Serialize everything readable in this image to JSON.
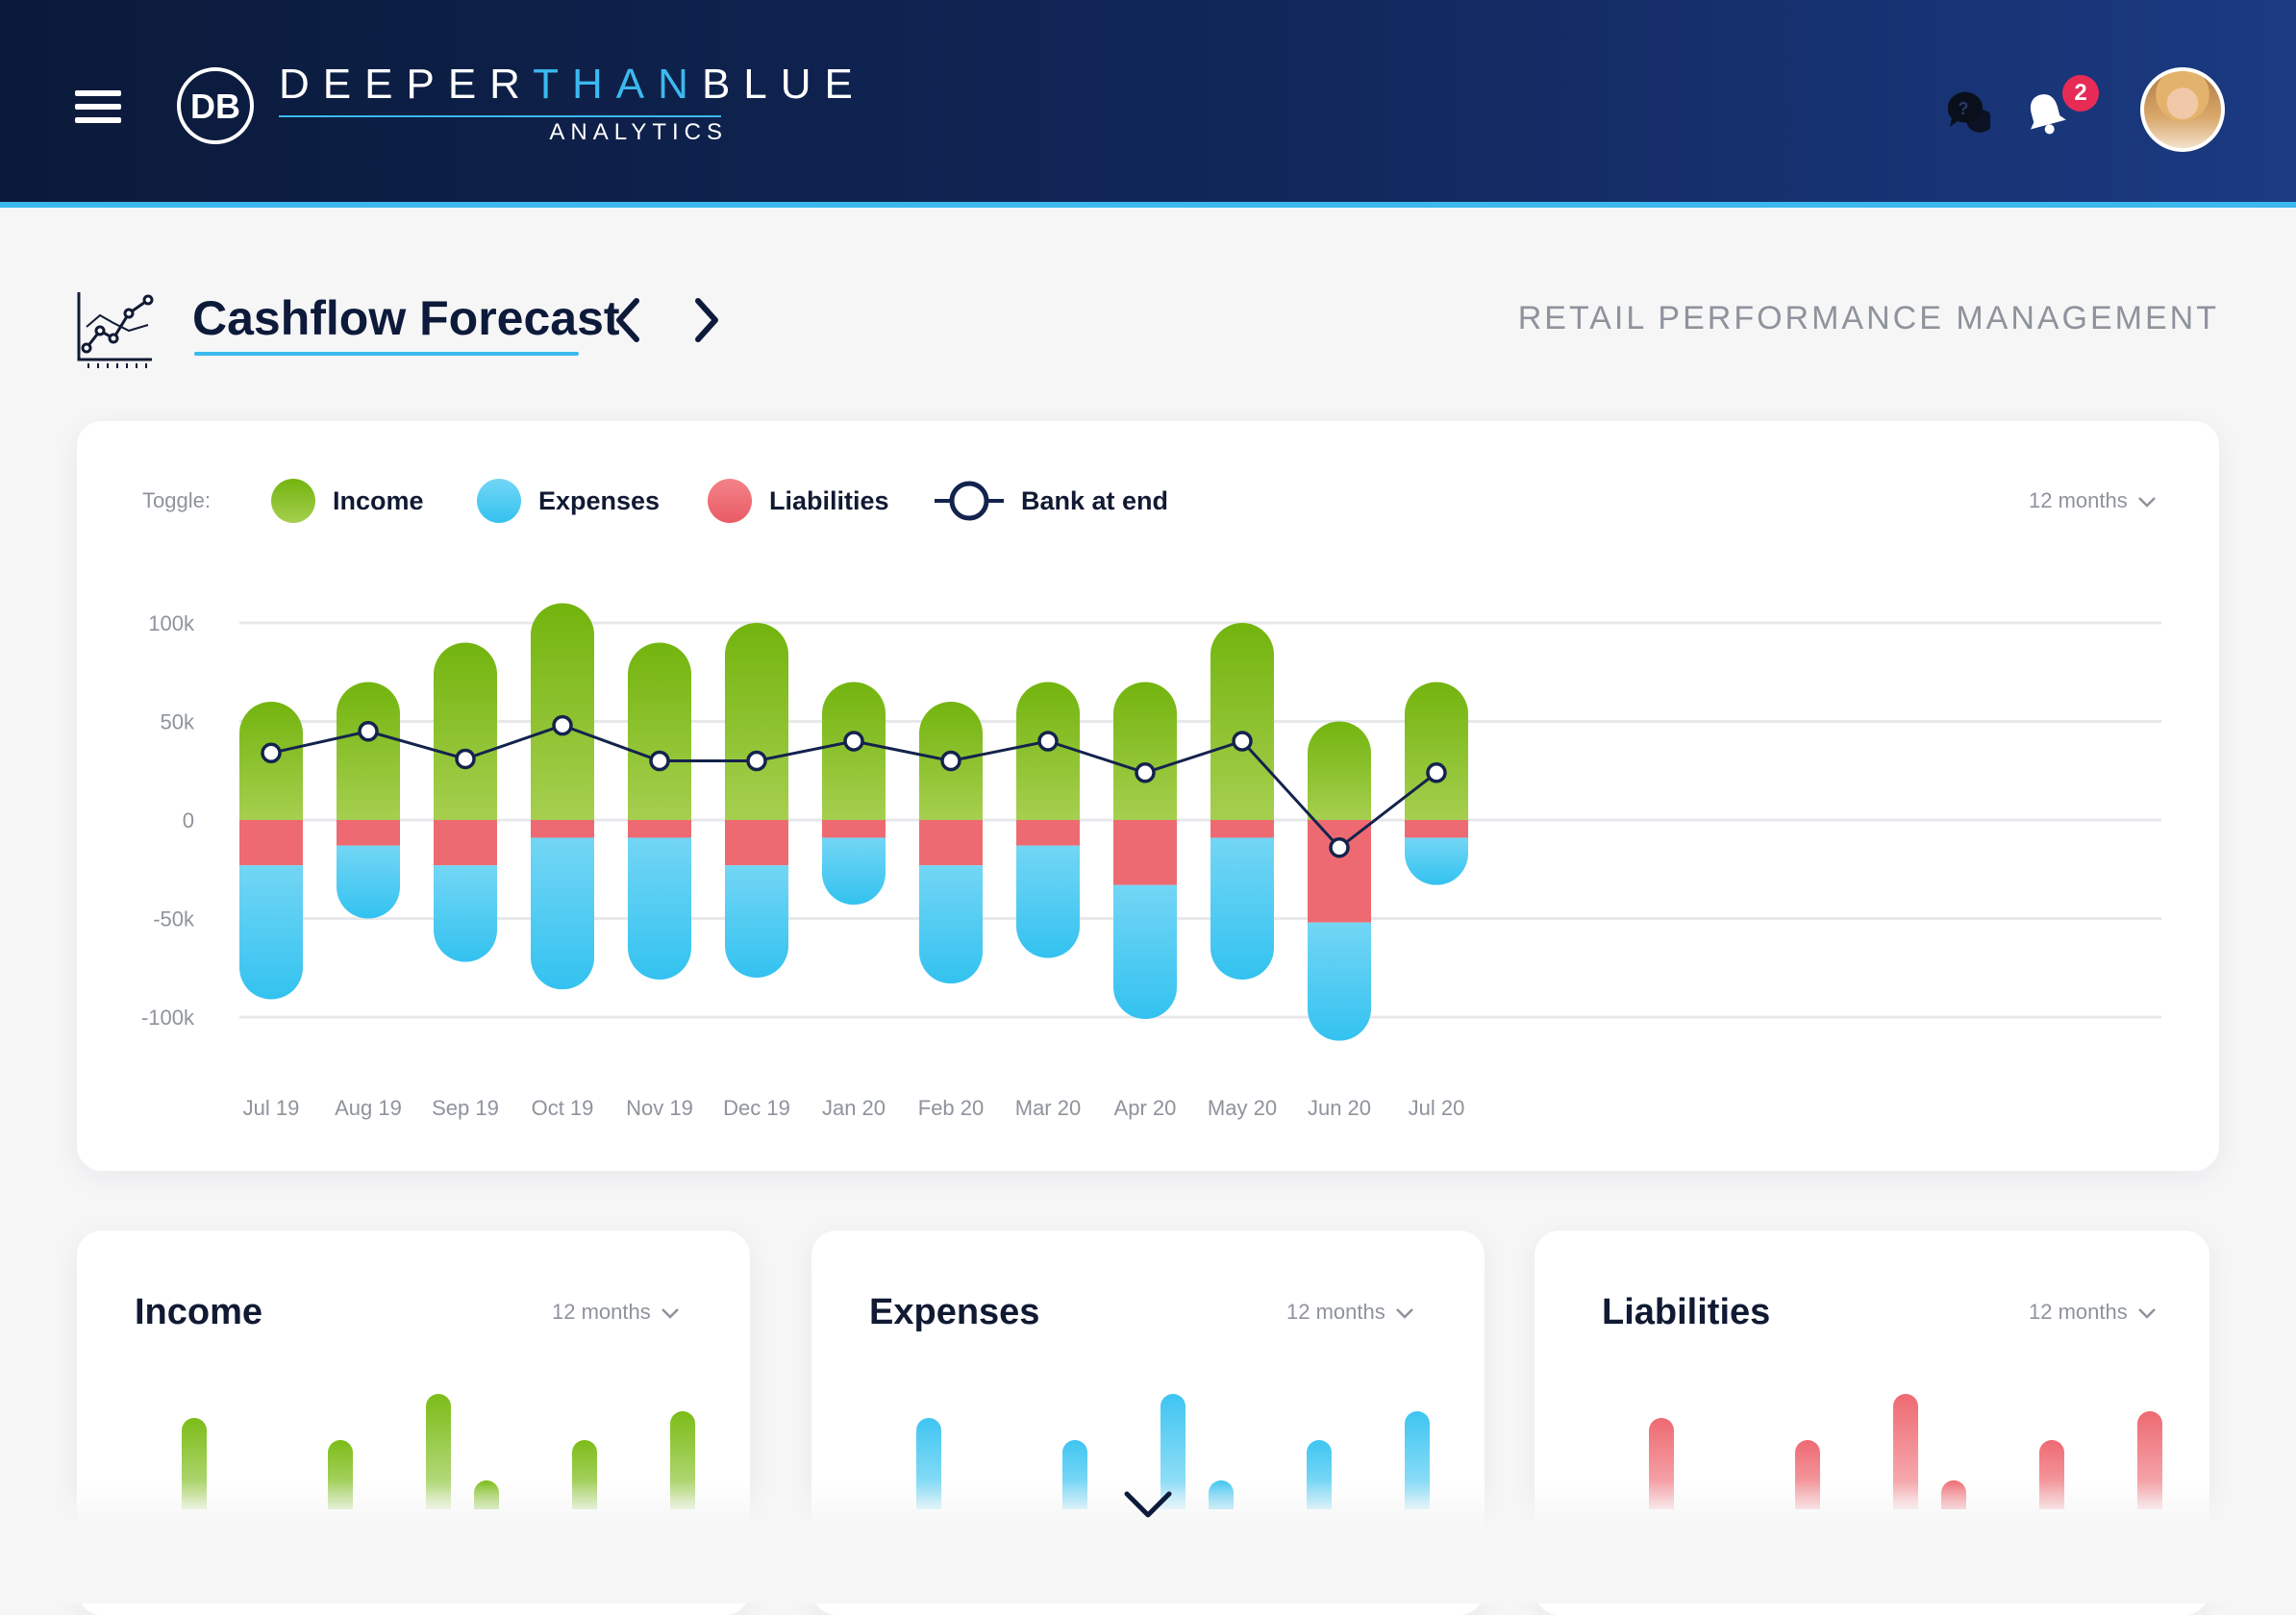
{
  "header": {
    "brand_part1": "DEEPER",
    "brand_part2": "THAN",
    "brand_part3": "BLUE",
    "brand_sub": "ANALYTICS",
    "logo_text": "DB",
    "notification_count": "2",
    "icons": [
      "menu-icon",
      "logo-icon",
      "chat-icon",
      "bell-icon",
      "avatar"
    ]
  },
  "page": {
    "title": "Cashflow Forecast",
    "section": "RETAIL PERFORMANCE MANAGEMENT"
  },
  "main_chart": {
    "toggle_label": "Toggle:",
    "legend": {
      "income": "Income",
      "expenses": "Expenses",
      "liabilities": "Liabilities",
      "bank": "Bank at end"
    },
    "period": "12 months"
  },
  "colors": {
    "income_top": "#73b40e",
    "income_bottom": "#a6cf4f",
    "expenses_top": "#73d6f5",
    "expenses_bottom": "#33c2f0",
    "liabilities": "#ee6a72",
    "bank_line": "#14234d",
    "accent": "#3bb9ee"
  },
  "chart_data": {
    "type": "bar",
    "categories": [
      "Jul 19",
      "Aug 19",
      "Sep 19",
      "Oct 19",
      "Nov 19",
      "Dec 19",
      "Jan 20",
      "Feb 20",
      "Mar 20",
      "Apr 20",
      "May 20",
      "Jun 20",
      "Jul 20"
    ],
    "y_ticks": [
      "100k",
      "50k",
      "0",
      "-50k",
      "-100k"
    ],
    "ylim": [
      -100000,
      100000
    ],
    "grid": true,
    "series": [
      {
        "name": "Income",
        "kind": "bar",
        "values": [
          60000,
          70000,
          90000,
          110000,
          90000,
          100000,
          70000,
          60000,
          70000,
          70000,
          100000,
          50000,
          70000
        ]
      },
      {
        "name": "Liabilities",
        "kind": "bar",
        "values": [
          -23000,
          -13000,
          -23000,
          -9000,
          -9000,
          -23000,
          -9000,
          -23000,
          -13000,
          -33000,
          -9000,
          -52000,
          -9000
        ]
      },
      {
        "name": "Expenses",
        "kind": "bar",
        "values": [
          -68000,
          -37000,
          -49000,
          -77000,
          -72000,
          -57000,
          -34000,
          -60000,
          -57000,
          -68000,
          -72000,
          -60000,
          -24000
        ]
      },
      {
        "name": "Bank at end",
        "kind": "line",
        "values": [
          34000,
          45000,
          31000,
          48000,
          30000,
          30000,
          40000,
          30000,
          40000,
          24000,
          40000,
          -14000,
          24000
        ]
      }
    ]
  },
  "mini_charts": [
    {
      "title": "Income",
      "period": "12 months",
      "color": "#7cbc18",
      "values": [
        0.75,
        0.52,
        1.0,
        0.1,
        0.52,
        0.82
      ]
    },
    {
      "title": "Expenses",
      "period": "12 months",
      "color": "#3ec5f1",
      "values": [
        0.75,
        0.52,
        1.0,
        0.1,
        0.52,
        0.82
      ]
    },
    {
      "title": "Liabilities",
      "period": "12 months",
      "color": "#ee6a72",
      "values": [
        0.75,
        0.52,
        1.0,
        0.1,
        0.52,
        0.82
      ]
    }
  ]
}
